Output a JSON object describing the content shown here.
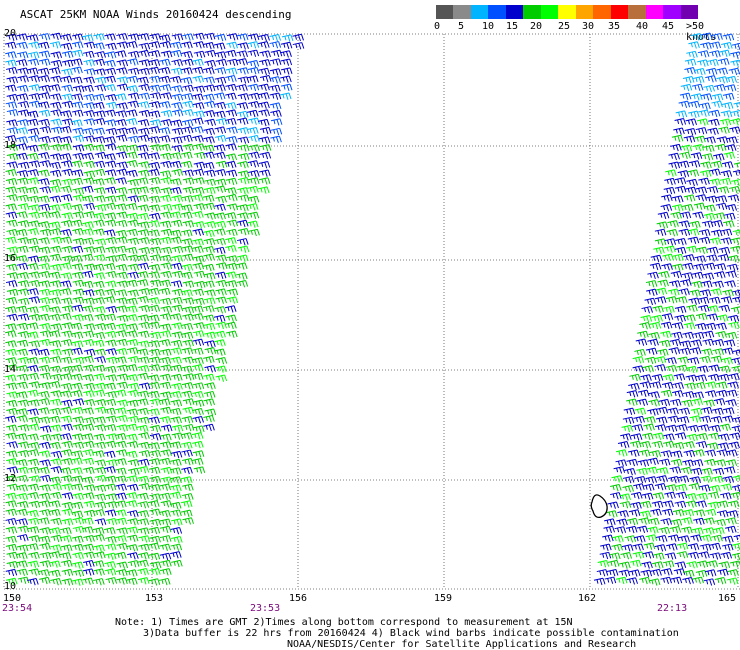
{
  "title": "ASCAT 25KM NOAA Winds 20160424 descending",
  "legend": {
    "colors": [
      "#555555",
      "#8a8a8a",
      "#00b4ff",
      "#0050ff",
      "#0000cc",
      "#00cc00",
      "#00ff00",
      "#ffff00",
      "#ffa500",
      "#ff6600",
      "#ff0000",
      "#b86f3c",
      "#ff00ff",
      "#a000ff",
      "#7000b0"
    ],
    "labels": [
      "0",
      "5",
      "10",
      "15",
      "20",
      "25",
      "30",
      "35",
      "40",
      "45",
      ">50 knots"
    ],
    "unit": "knots"
  },
  "map": {
    "lon_range": [
      150,
      165
    ],
    "lat_range": [
      10,
      20
    ],
    "lon_ticks": [
      "150",
      "153",
      "156",
      "159",
      "162",
      "165"
    ],
    "lat_ticks": [
      "20",
      "18",
      "16",
      "14",
      "12",
      "10"
    ],
    "pass_times": [
      "23:54",
      "23:53",
      "22:13"
    ],
    "contamination_marker": "black contour near 162E 11.5N"
  },
  "notes": [
    "Note: 1) Times are GMT 2)Times along bottom correspond to measurement at 15N",
    "3)Data buffer is 22 hrs from 20160424 4) Black wind barbs indicate possible contamination",
    "NOAA/NESDIS/Center for Satellite Applications and Research"
  ]
}
